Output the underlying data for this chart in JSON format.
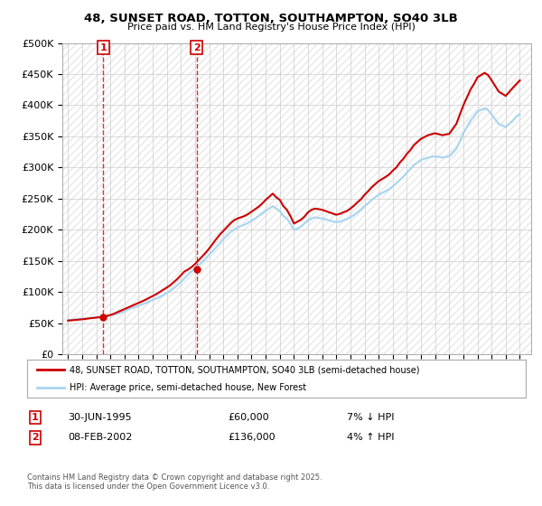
{
  "title": "48, SUNSET ROAD, TOTTON, SOUTHAMPTON, SO40 3LB",
  "subtitle": "Price paid vs. HM Land Registry's House Price Index (HPI)",
  "legend_line1": "48, SUNSET ROAD, TOTTON, SOUTHAMPTON, SO40 3LB (semi-detached house)",
  "legend_line2": "HPI: Average price, semi-detached house, New Forest",
  "annotation1_label": "1",
  "annotation1_date": "30-JUN-1995",
  "annotation1_price": "£60,000",
  "annotation1_hpi": "7% ↓ HPI",
  "annotation2_label": "2",
  "annotation2_date": "08-FEB-2002",
  "annotation2_price": "£136,000",
  "annotation2_hpi": "4% ↑ HPI",
  "footnote": "Contains HM Land Registry data © Crown copyright and database right 2025.\nThis data is licensed under the Open Government Licence v3.0.",
  "hpi_color": "#a8d4f0",
  "price_color": "#cc0000",
  "annotation_color": "#cc0000",
  "bg_color": "#ffffff",
  "grid_color": "#cccccc",
  "hatch_color": "#e8e8e8",
  "ylim": [
    0,
    500000
  ],
  "yticks": [
    0,
    50000,
    100000,
    150000,
    200000,
    250000,
    300000,
    350000,
    400000,
    450000,
    500000
  ],
  "xlim_start": 1992.6,
  "xlim_end": 2025.8,
  "purchase1_x": 1995.5,
  "purchase1_y": 60000,
  "purchase2_x": 2002.1,
  "purchase2_y": 136000,
  "hpi_x": [
    1993,
    1993.25,
    1993.5,
    1993.75,
    1994,
    1994.25,
    1994.5,
    1994.75,
    1995,
    1995.25,
    1995.5,
    1995.75,
    1996,
    1996.25,
    1996.5,
    1996.75,
    1997,
    1997.25,
    1997.5,
    1997.75,
    1998,
    1998.25,
    1998.5,
    1998.75,
    1999,
    1999.25,
    1999.5,
    1999.75,
    2000,
    2000.25,
    2000.5,
    2000.75,
    2001,
    2001.25,
    2001.5,
    2001.75,
    2002,
    2002.25,
    2002.5,
    2002.75,
    2003,
    2003.25,
    2003.5,
    2003.75,
    2004,
    2004.25,
    2004.5,
    2004.75,
    2005,
    2005.25,
    2005.5,
    2005.75,
    2006,
    2006.25,
    2006.5,
    2006.75,
    2007,
    2007.25,
    2007.5,
    2007.75,
    2008,
    2008.25,
    2008.5,
    2008.75,
    2009,
    2009.25,
    2009.5,
    2009.75,
    2010,
    2010.25,
    2010.5,
    2010.75,
    2011,
    2011.25,
    2011.5,
    2011.75,
    2012,
    2012.25,
    2012.5,
    2012.75,
    2013,
    2013.25,
    2013.5,
    2013.75,
    2014,
    2014.25,
    2014.5,
    2014.75,
    2015,
    2015.25,
    2015.5,
    2015.75,
    2016,
    2016.25,
    2016.5,
    2016.75,
    2017,
    2017.25,
    2017.5,
    2017.75,
    2018,
    2018.25,
    2018.5,
    2018.75,
    2019,
    2019.25,
    2019.5,
    2019.75,
    2020,
    2020.25,
    2020.5,
    2020.75,
    2021,
    2021.25,
    2021.5,
    2021.75,
    2022,
    2022.25,
    2022.5,
    2022.75,
    2023,
    2023.25,
    2023.5,
    2023.75,
    2024,
    2024.25,
    2024.5,
    2024.75,
    2025
  ],
  "hpi_y": [
    55000,
    55500,
    56000,
    56500,
    57000,
    57500,
    58000,
    58500,
    59000,
    59500,
    60000,
    61000,
    62000,
    63500,
    65000,
    67000,
    69000,
    71500,
    74000,
    76000,
    78000,
    80000,
    82000,
    84500,
    87000,
    89500,
    92000,
    95000,
    98000,
    102000,
    106000,
    111000,
    116000,
    122000,
    128000,
    133000,
    138000,
    143000,
    148000,
    154000,
    160000,
    166000,
    172000,
    178000,
    185000,
    190500,
    196000,
    200000,
    204000,
    206000,
    208000,
    211000,
    215000,
    218000,
    222000,
    226000,
    230000,
    234000,
    238000,
    234000,
    230000,
    222000,
    218000,
    210000,
    200000,
    202000,
    205000,
    210000,
    215000,
    218000,
    220000,
    219000,
    218000,
    216500,
    215000,
    213500,
    212000,
    213000,
    215000,
    217000,
    220000,
    223500,
    228000,
    232500,
    238000,
    242500,
    248000,
    252000,
    256000,
    259000,
    262000,
    265000,
    270000,
    274500,
    280000,
    285000,
    292000,
    297500,
    304000,
    308000,
    312000,
    314000,
    316000,
    317000,
    318000,
    317000,
    316000,
    317000,
    318000,
    324000,
    330000,
    342000,
    355000,
    365000,
    375000,
    382000,
    390000,
    392500,
    395000,
    392500,
    385000,
    377500,
    370000,
    367500,
    365000,
    370000,
    375000,
    382000,
    385000
  ],
  "price_x": [
    1993,
    1993.25,
    1993.5,
    1993.75,
    1994,
    1994.25,
    1994.5,
    1994.75,
    1995,
    1995.25,
    1995.5,
    1995.75,
    1996,
    1996.25,
    1996.5,
    1996.75,
    1997,
    1997.25,
    1997.5,
    1997.75,
    1998,
    1998.25,
    1998.5,
    1998.75,
    1999,
    1999.25,
    1999.5,
    1999.75,
    2000,
    2000.25,
    2000.5,
    2000.75,
    2001,
    2001.25,
    2001.5,
    2001.75,
    2002,
    2002.25,
    2002.5,
    2002.75,
    2003,
    2003.25,
    2003.5,
    2003.75,
    2004,
    2004.25,
    2004.5,
    2004.75,
    2005,
    2005.25,
    2005.5,
    2005.75,
    2006,
    2006.25,
    2006.5,
    2006.75,
    2007,
    2007.25,
    2007.5,
    2007.75,
    2008,
    2008.25,
    2008.5,
    2008.75,
    2009,
    2009.25,
    2009.5,
    2009.75,
    2010,
    2010.25,
    2010.5,
    2010.75,
    2011,
    2011.25,
    2011.5,
    2011.75,
    2012,
    2012.25,
    2012.5,
    2012.75,
    2013,
    2013.25,
    2013.5,
    2013.75,
    2014,
    2014.25,
    2014.5,
    2014.75,
    2015,
    2015.25,
    2015.5,
    2015.75,
    2016,
    2016.25,
    2016.5,
    2016.75,
    2017,
    2017.25,
    2017.5,
    2017.75,
    2018,
    2018.25,
    2018.5,
    2018.75,
    2019,
    2019.25,
    2019.5,
    2019.75,
    2020,
    2020.25,
    2020.5,
    2020.75,
    2021,
    2021.25,
    2021.5,
    2021.75,
    2022,
    2022.25,
    2022.5,
    2022.75,
    2023,
    2023.25,
    2023.5,
    2023.75,
    2024,
    2024.25,
    2024.5,
    2024.75,
    2025
  ],
  "price_y": [
    54000,
    54500,
    55000,
    55500,
    56000,
    56800,
    57500,
    58200,
    59000,
    59500,
    60000,
    61500,
    63000,
    65000,
    67500,
    70000,
    72500,
    75000,
    77500,
    80000,
    82500,
    85000,
    87500,
    90500,
    93500,
    96500,
    100000,
    103500,
    107000,
    111000,
    116000,
    121000,
    127000,
    133000,
    136000,
    140000,
    145000,
    151000,
    157000,
    163000,
    170000,
    177500,
    185000,
    192000,
    198000,
    204000,
    210000,
    215000,
    218000,
    220000,
    222000,
    225000,
    229000,
    233000,
    237000,
    242000,
    248000,
    253000,
    258000,
    252000,
    248000,
    238000,
    232000,
    222000,
    210000,
    213000,
    216000,
    221000,
    228000,
    232000,
    234000,
    233000,
    232000,
    230000,
    228000,
    226000,
    224000,
    225500,
    228000,
    230000,
    234000,
    238500,
    244000,
    249000,
    256000,
    261500,
    268000,
    273000,
    278000,
    281500,
    285000,
    289000,
    295000,
    300000,
    308000,
    314000,
    322000,
    328000,
    336000,
    341000,
    346000,
    349000,
    352000,
    353500,
    355000,
    353500,
    352000,
    353000,
    354000,
    362000,
    370000,
    385000,
    400000,
    412500,
    425000,
    434000,
    445000,
    448500,
    452000,
    448500,
    440000,
    431000,
    422000,
    418500,
    415000,
    421500,
    428000,
    434000,
    440000
  ]
}
